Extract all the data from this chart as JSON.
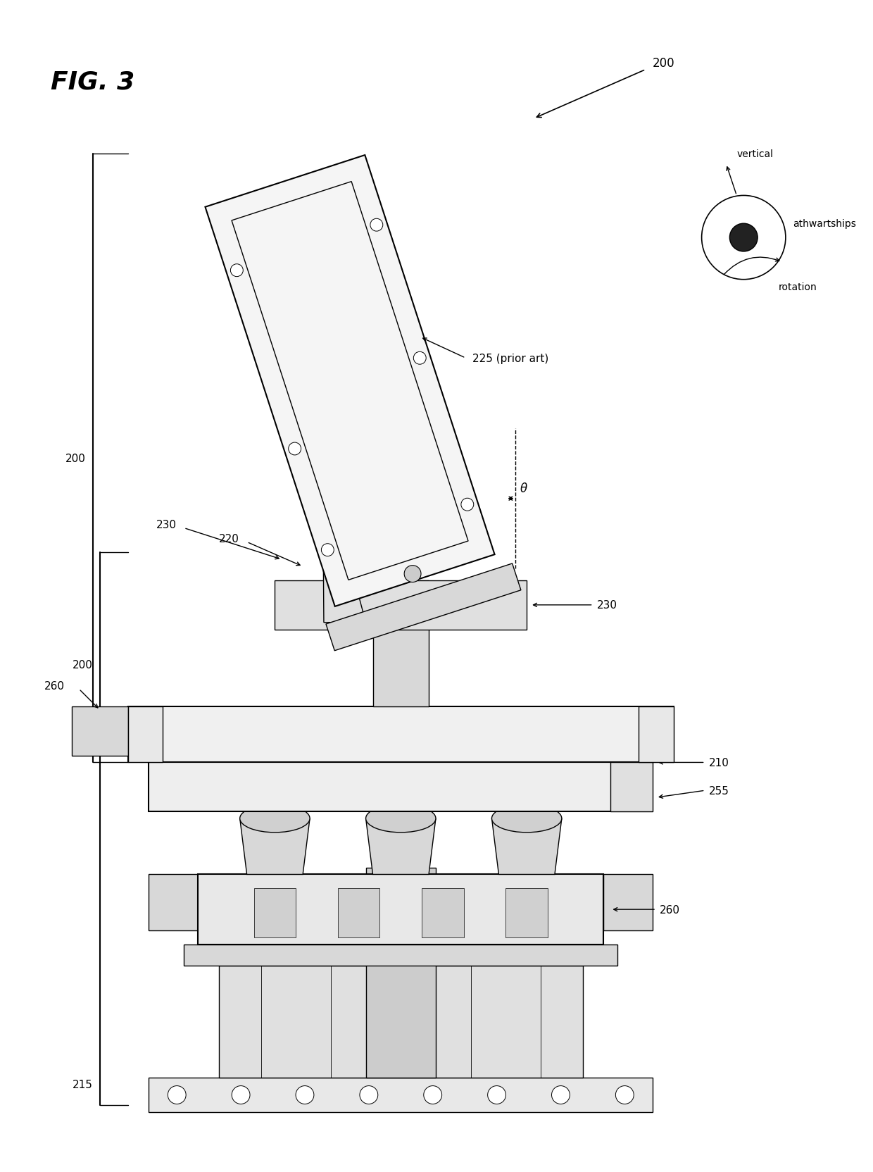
{
  "bg_color": "#ffffff",
  "line_color": "#000000",
  "fig_width": 12.4,
  "fig_height": 16.65,
  "labels": {
    "fig_title": "FIG. 3",
    "label_200_top": "200",
    "label_200_left": "200",
    "label_215": "215",
    "label_220": "220",
    "label_225": "225 (prior art)",
    "label_230_top": "230",
    "label_230_bot": "230",
    "label_255": "255",
    "label_210": "210",
    "label_260_top": "260",
    "label_260_bot": "260",
    "label_vertical": "vertical",
    "label_athwartships": "athwartships",
    "label_rotation": "rotation",
    "label_theta": "θ"
  }
}
